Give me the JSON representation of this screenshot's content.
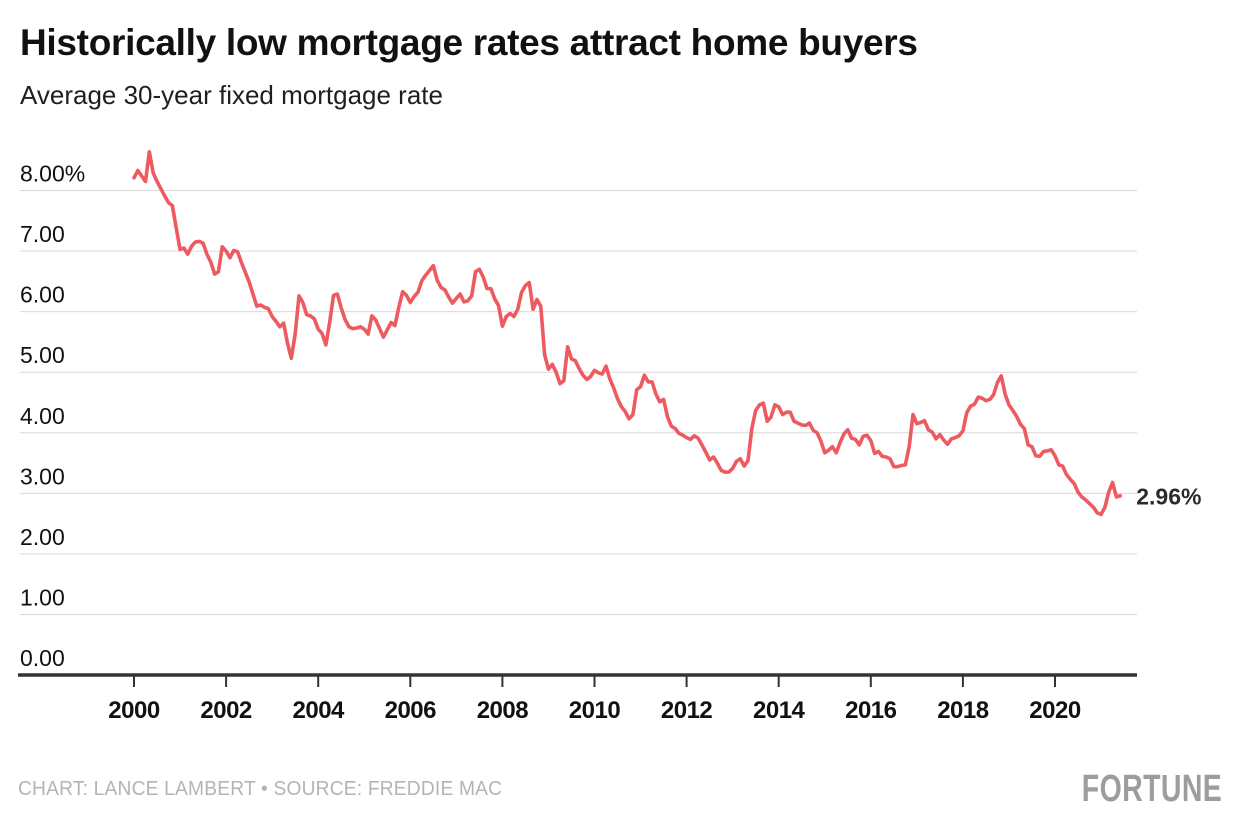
{
  "header": {
    "title": "Historically low mortgage rates attract home buyers",
    "subtitle": "Average 30-year fixed mortgage rate"
  },
  "footer": {
    "credit": "CHART: LANCE LAMBERT • SOURCE: FREDDIE MAC",
    "brand": "FORTUNE"
  },
  "chart_data": {
    "type": "line",
    "title": "Historically low mortgage rates attract home buyers",
    "subtitle": "Average 30-year fixed mortgage rate",
    "unit": "%",
    "x_start_year": 2000,
    "x_step": "monthly",
    "x_tick_years": [
      2000,
      2002,
      2004,
      2006,
      2008,
      2010,
      2012,
      2014,
      2016,
      2018,
      2020
    ],
    "y_tick_labels": [
      "8.00%",
      "7.00",
      "6.00",
      "5.00",
      "4.00",
      "3.00",
      "2.00",
      "1.00",
      "0.00"
    ],
    "y_tick_values": [
      8,
      7,
      6,
      5,
      4,
      3,
      2,
      1,
      0
    ],
    "ylim": [
      0,
      8.8
    ],
    "grid": "horizontal",
    "legend": "none",
    "line_color": "#ED5A5F",
    "grid_color": "#d9d9d9",
    "axis_color": "#333333",
    "end_label": "2.96%",
    "end_value": 2.96,
    "series": [
      {
        "name": "Average 30-year fixed mortgage rate",
        "values": [
          8.21,
          8.33,
          8.24,
          8.15,
          8.64,
          8.29,
          8.15,
          8.03,
          7.91,
          7.8,
          7.75,
          7.38,
          7.03,
          7.05,
          6.95,
          7.08,
          7.15,
          7.16,
          7.13,
          6.95,
          6.82,
          6.62,
          6.66,
          7.07,
          7.0,
          6.89,
          7.01,
          6.99,
          6.81,
          6.65,
          6.49,
          6.29,
          6.09,
          6.11,
          6.07,
          6.05,
          5.92,
          5.84,
          5.75,
          5.81,
          5.48,
          5.23,
          5.63,
          6.26,
          6.15,
          5.95,
          5.93,
          5.88,
          5.71,
          5.64,
          5.45,
          5.83,
          6.27,
          6.29,
          6.06,
          5.87,
          5.75,
          5.72,
          5.73,
          5.75,
          5.71,
          5.63,
          5.93,
          5.86,
          5.72,
          5.58,
          5.7,
          5.82,
          5.77,
          6.07,
          6.33,
          6.27,
          6.15,
          6.25,
          6.32,
          6.51,
          6.6,
          6.68,
          6.76,
          6.52,
          6.4,
          6.36,
          6.24,
          6.14,
          6.22,
          6.29,
          6.16,
          6.18,
          6.26,
          6.66,
          6.7,
          6.57,
          6.38,
          6.38,
          6.21,
          6.1,
          5.76,
          5.92,
          5.97,
          5.92,
          6.04,
          6.32,
          6.43,
          6.48,
          6.04,
          6.2,
          6.09,
          5.29,
          5.05,
          5.13,
          5.0,
          4.81,
          4.86,
          5.42,
          5.22,
          5.19,
          5.06,
          4.95,
          4.88,
          4.93,
          5.03,
          4.99,
          4.97,
          5.1,
          4.89,
          4.74,
          4.56,
          4.43,
          4.35,
          4.23,
          4.3,
          4.71,
          4.76,
          4.95,
          4.84,
          4.84,
          4.64,
          4.51,
          4.55,
          4.27,
          4.11,
          4.07,
          3.99,
          3.96,
          3.92,
          3.89,
          3.95,
          3.91,
          3.8,
          3.68,
          3.55,
          3.6,
          3.5,
          3.38,
          3.35,
          3.35,
          3.41,
          3.53,
          3.57,
          3.45,
          3.54,
          4.07,
          4.37,
          4.46,
          4.49,
          4.19,
          4.26,
          4.46,
          4.43,
          4.3,
          4.34,
          4.34,
          4.19,
          4.16,
          4.13,
          4.12,
          4.16,
          4.04,
          4.0,
          3.86,
          3.67,
          3.71,
          3.77,
          3.67,
          3.84,
          3.98,
          4.05,
          3.91,
          3.89,
          3.8,
          3.94,
          3.96,
          3.87,
          3.66,
          3.69,
          3.61,
          3.6,
          3.57,
          3.44,
          3.44,
          3.46,
          3.47,
          3.77,
          4.3,
          4.15,
          4.17,
          4.2,
          4.05,
          4.01,
          3.9,
          3.97,
          3.88,
          3.81,
          3.9,
          3.92,
          3.95,
          4.03,
          4.33,
          4.44,
          4.47,
          4.59,
          4.57,
          4.53,
          4.55,
          4.63,
          4.83,
          4.94,
          4.64,
          4.46,
          4.37,
          4.27,
          4.14,
          4.07,
          3.8,
          3.77,
          3.62,
          3.61,
          3.69,
          3.7,
          3.72,
          3.62,
          3.47,
          3.45,
          3.31,
          3.23,
          3.16,
          3.02,
          2.94,
          2.89,
          2.83,
          2.77,
          2.68,
          2.65,
          2.77,
          3.02,
          3.18,
          2.94,
          2.96
        ]
      }
    ]
  }
}
